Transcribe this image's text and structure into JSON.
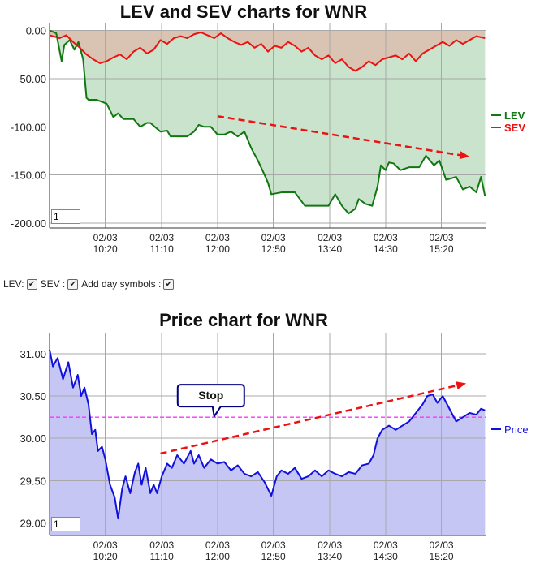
{
  "chart_data": [
    {
      "type": "area",
      "title": "LEV and SEV charts for WNR",
      "ylim": [
        -205,
        8
      ],
      "yticks": [
        "0.00",
        "-50.00",
        "-100.00",
        "-150.00",
        "-200.00"
      ],
      "ytick_values": [
        0,
        -50,
        -100,
        -150,
        -200
      ],
      "xticks": [
        {
          "date": "02/03",
          "time": "10:20",
          "x": 10.33
        },
        {
          "date": "02/03",
          "time": "11:10",
          "x": 11.17
        },
        {
          "date": "02/03",
          "time": "12:00",
          "x": 12.0
        },
        {
          "date": "02/03",
          "time": "12:50",
          "x": 12.83
        },
        {
          "date": "02/03",
          "time": "13:40",
          "x": 13.67
        },
        {
          "date": "02/03",
          "time": "14:30",
          "x": 14.5
        },
        {
          "date": "02/03",
          "time": "15:20",
          "x": 15.33
        }
      ],
      "xlim": [
        9.5,
        16.0
      ],
      "grid": true,
      "legend_position": "right",
      "input_value": "1",
      "series": [
        {
          "name": "LEV",
          "color": "#117711",
          "fill": "#c9e3cc",
          "x": [
            9.5,
            9.6,
            9.68,
            9.72,
            9.8,
            9.87,
            9.93,
            10.0,
            10.05,
            10.08,
            10.13,
            10.2,
            10.35,
            10.45,
            10.52,
            10.6,
            10.75,
            10.85,
            10.95,
            11.0,
            11.15,
            11.25,
            11.3,
            11.4,
            11.55,
            11.65,
            11.72,
            11.8,
            11.9,
            12.0,
            12.1,
            12.2,
            12.3,
            12.4,
            12.5,
            12.6,
            12.7,
            12.75,
            12.8,
            12.95,
            13.05,
            13.15,
            13.3,
            13.45,
            13.55,
            13.65,
            13.75,
            13.85,
            13.95,
            14.05,
            14.1,
            14.2,
            14.3,
            14.38,
            14.43,
            14.5,
            14.55,
            14.62,
            14.72,
            14.85,
            15.0,
            15.1,
            15.22,
            15.3,
            15.4,
            15.55,
            15.65,
            15.75,
            15.85,
            15.92,
            15.98
          ],
          "y": [
            0,
            -3,
            -32,
            -15,
            -10,
            -20,
            -12,
            -30,
            -70,
            -72,
            -72,
            -72,
            -76,
            -90,
            -86,
            -92,
            -92,
            -100,
            -96,
            -96,
            -105,
            -104,
            -110,
            -110,
            -110,
            -105,
            -98,
            -100,
            -100,
            -108,
            -108,
            -105,
            -110,
            -105,
            -122,
            -135,
            -150,
            -158,
            -170,
            -168,
            -168,
            -168,
            -182,
            -182,
            -182,
            -182,
            -170,
            -182,
            -190,
            -185,
            -175,
            -180,
            -182,
            -162,
            -140,
            -145,
            -137,
            -138,
            -145,
            -142,
            -142,
            -130,
            -140,
            -135,
            -155,
            -152,
            -165,
            -162,
            -168,
            -152,
            -172
          ]
        },
        {
          "name": "SEV",
          "color": "#ee1111",
          "fill": "#d9c4b3",
          "x": [
            9.5,
            9.65,
            9.75,
            9.85,
            9.95,
            10.05,
            10.15,
            10.25,
            10.35,
            10.45,
            10.55,
            10.65,
            10.75,
            10.85,
            10.95,
            11.05,
            11.15,
            11.25,
            11.35,
            11.45,
            11.55,
            11.65,
            11.75,
            11.85,
            11.95,
            12.05,
            12.15,
            12.25,
            12.35,
            12.45,
            12.55,
            12.65,
            12.75,
            12.85,
            12.95,
            13.05,
            13.15,
            13.25,
            13.35,
            13.45,
            13.55,
            13.65,
            13.75,
            13.85,
            13.95,
            14.05,
            14.15,
            14.25,
            14.35,
            14.45,
            14.55,
            14.65,
            14.75,
            14.85,
            14.95,
            15.05,
            15.15,
            15.25,
            15.35,
            15.45,
            15.55,
            15.65,
            15.75,
            15.85,
            15.98
          ],
          "y": [
            -5,
            -8,
            -5,
            -12,
            -18,
            -25,
            -30,
            -34,
            -32,
            -28,
            -25,
            -30,
            -22,
            -18,
            -24,
            -20,
            -10,
            -14,
            -8,
            -6,
            -8,
            -4,
            -2,
            -5,
            -8,
            -3,
            -8,
            -12,
            -15,
            -12,
            -18,
            -14,
            -22,
            -16,
            -18,
            -12,
            -16,
            -22,
            -18,
            -26,
            -30,
            -26,
            -34,
            -30,
            -38,
            -42,
            -38,
            -32,
            -36,
            -30,
            -28,
            -26,
            -30,
            -24,
            -32,
            -24,
            -20,
            -16,
            -12,
            -16,
            -10,
            -14,
            -10,
            -6,
            -8
          ]
        }
      ],
      "annotation": {
        "type": "dashed-arrow",
        "color": "#ee1111",
        "from": [
          12.0,
          -89
        ],
        "to": [
          15.75,
          -131
        ]
      }
    },
    {
      "type": "area",
      "title": "Price chart for WNR",
      "ylim": [
        28.85,
        31.25
      ],
      "yticks": [
        "31.00",
        "30.50",
        "30.00",
        "29.50",
        "29.00"
      ],
      "ytick_values": [
        31.0,
        30.5,
        30.0,
        29.5,
        29.0
      ],
      "xticks": [
        {
          "date": "02/03",
          "time": "10:20",
          "x": 10.33
        },
        {
          "date": "02/03",
          "time": "11:10",
          "x": 11.17
        },
        {
          "date": "02/03",
          "time": "12:00",
          "x": 12.0
        },
        {
          "date": "02/03",
          "time": "12:50",
          "x": 12.83
        },
        {
          "date": "02/03",
          "time": "13:40",
          "x": 13.67
        },
        {
          "date": "02/03",
          "time": "14:30",
          "x": 14.5
        },
        {
          "date": "02/03",
          "time": "15:20",
          "x": 15.33
        }
      ],
      "xlim": [
        9.5,
        16.0
      ],
      "grid": true,
      "legend_position": "right",
      "input_value": "1",
      "series": [
        {
          "name": "Price",
          "color": "#1111dd",
          "fill": "#c6c6f5",
          "x": [
            9.5,
            9.55,
            9.62,
            9.7,
            9.78,
            9.85,
            9.92,
            9.97,
            10.02,
            10.08,
            10.13,
            10.18,
            10.22,
            10.28,
            10.33,
            10.4,
            10.47,
            10.52,
            10.58,
            10.63,
            10.7,
            10.77,
            10.82,
            10.87,
            10.93,
            11.0,
            11.05,
            11.1,
            11.17,
            11.25,
            11.32,
            11.4,
            11.5,
            11.6,
            11.65,
            11.72,
            11.8,
            11.9,
            12.0,
            12.1,
            12.2,
            12.3,
            12.4,
            12.5,
            12.6,
            12.7,
            12.8,
            12.88,
            12.95,
            13.05,
            13.15,
            13.25,
            13.35,
            13.45,
            13.55,
            13.65,
            13.75,
            13.85,
            13.95,
            14.05,
            14.15,
            14.25,
            14.32,
            14.38,
            14.45,
            14.55,
            14.65,
            14.75,
            14.85,
            14.95,
            15.05,
            15.12,
            15.2,
            15.27,
            15.35,
            15.45,
            15.55,
            15.65,
            15.75,
            15.85,
            15.92,
            15.98
          ],
          "y": [
            31.05,
            30.85,
            30.95,
            30.7,
            30.9,
            30.6,
            30.75,
            30.5,
            30.6,
            30.4,
            30.05,
            30.1,
            29.85,
            29.9,
            29.75,
            29.45,
            29.3,
            29.05,
            29.4,
            29.55,
            29.35,
            29.6,
            29.7,
            29.45,
            29.65,
            29.35,
            29.45,
            29.35,
            29.55,
            29.7,
            29.65,
            29.8,
            29.7,
            29.85,
            29.7,
            29.8,
            29.65,
            29.75,
            29.7,
            29.72,
            29.62,
            29.68,
            29.58,
            29.55,
            29.6,
            29.48,
            29.32,
            29.55,
            29.62,
            29.58,
            29.65,
            29.52,
            29.55,
            29.62,
            29.55,
            29.62,
            29.58,
            29.55,
            29.6,
            29.58,
            29.68,
            29.7,
            29.8,
            30.0,
            30.1,
            30.15,
            30.1,
            30.15,
            30.2,
            30.3,
            30.4,
            30.5,
            30.52,
            30.42,
            30.5,
            30.35,
            30.2,
            30.25,
            30.3,
            30.28,
            30.35,
            30.33
          ]
        }
      ],
      "reference_line": {
        "y": 30.25,
        "color": "#ff33ff",
        "style": "dashed"
      },
      "callout": {
        "text": "Stop",
        "anchor": [
          11.95,
          30.25
        ]
      },
      "annotation": {
        "type": "dashed-arrow",
        "color": "#ee1111",
        "from": [
          11.15,
          29.82
        ],
        "to": [
          15.7,
          30.65
        ]
      }
    }
  ],
  "controls": {
    "lev_label": "LEV:",
    "sev_label": "SEV :",
    "day_label": "Add day symbols :",
    "check_mark": "✔"
  }
}
